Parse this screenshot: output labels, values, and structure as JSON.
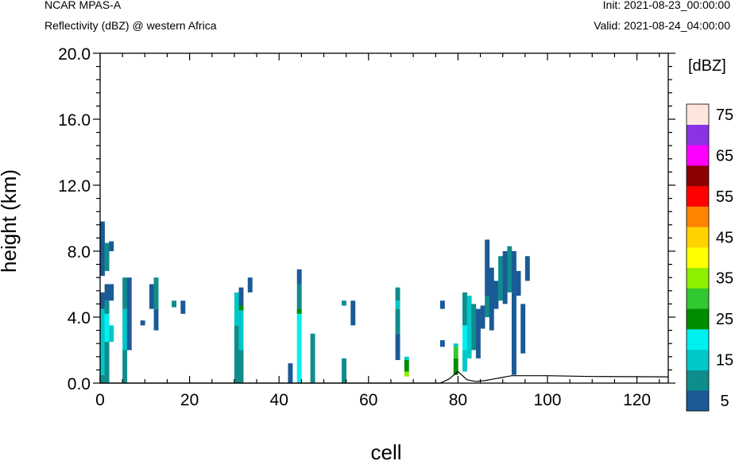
{
  "header": {
    "model": "NCAR MPAS-A",
    "field": "Reflectivity (dBZ) @ western Africa",
    "init": "Init: 2021-08-23_00:00:00",
    "valid": "Valid: 2021-08-24_04:00:00"
  },
  "chart_data": {
    "type": "heatmap",
    "xlabel": "cell",
    "ylabel": "height (km)",
    "xlim": [
      0,
      127
    ],
    "ylim": [
      0,
      20
    ],
    "x_ticks": [
      "0",
      "20",
      "40",
      "60",
      "80",
      "100",
      "120"
    ],
    "y_ticks": [
      "0.0",
      "4.0",
      "8.0",
      "12.0",
      "16.0",
      "20.0"
    ],
    "grid": false,
    "colorbar": {
      "unit": "[dBZ]",
      "position": "right",
      "levels": [
        5,
        10,
        15,
        20,
        25,
        30,
        35,
        40,
        45,
        50,
        55,
        60,
        65,
        70,
        75
      ],
      "labels": [
        "5",
        "15",
        "25",
        "35",
        "45",
        "55",
        "65",
        "75"
      ],
      "colors": [
        "#1a5a96",
        "#0f8c8c",
        "#00c8c8",
        "#00f0f0",
        "#008c00",
        "#32c832",
        "#8cf000",
        "#ffff00",
        "#ffd200",
        "#ff8200",
        "#ff0000",
        "#8c0000",
        "#ff00ff",
        "#8c32e6",
        "#ffe6dc"
      ]
    },
    "terrain_km": [
      [
        0,
        0
      ],
      [
        76,
        0
      ],
      [
        78,
        0.25
      ],
      [
        80,
        0.7
      ],
      [
        82,
        0.2
      ],
      [
        84,
        0.1
      ],
      [
        86,
        0.15
      ],
      [
        88,
        0.25
      ],
      [
        90,
        0.35
      ],
      [
        92,
        0.45
      ],
      [
        100,
        0.45
      ],
      [
        110,
        0.4
      ],
      [
        127,
        0.38
      ]
    ],
    "cells": [
      [
        0,
        0,
        0.5,
        10
      ],
      [
        0,
        0.5,
        4.5,
        15
      ],
      [
        0,
        4.5,
        5.5,
        5
      ],
      [
        0,
        6.5,
        9.8,
        5
      ],
      [
        1,
        0,
        2.5,
        10
      ],
      [
        1,
        2.5,
        4.2,
        20
      ],
      [
        1,
        4.2,
        5,
        10
      ],
      [
        1,
        5,
        6,
        5
      ],
      [
        1,
        6.8,
        8.5,
        10
      ],
      [
        2,
        2.5,
        3.5,
        15
      ],
      [
        2,
        5,
        6,
        5
      ],
      [
        2,
        8,
        8.6,
        5
      ],
      [
        5,
        0,
        2,
        10
      ],
      [
        5,
        2,
        4.5,
        15
      ],
      [
        5,
        4.5,
        6.4,
        10
      ],
      [
        6,
        2,
        4,
        5
      ],
      [
        6,
        4,
        6.4,
        5
      ],
      [
        9,
        3.5,
        3.8,
        5
      ],
      [
        11,
        4.5,
        6,
        5
      ],
      [
        12,
        3.2,
        4.5,
        5
      ],
      [
        12,
        4.5,
        6.4,
        10
      ],
      [
        16,
        4.6,
        5,
        10
      ],
      [
        18,
        4.2,
        5,
        5
      ],
      [
        30,
        0,
        3.5,
        10
      ],
      [
        30,
        3.5,
        5.5,
        15
      ],
      [
        31,
        0,
        2,
        10
      ],
      [
        31,
        2,
        4.4,
        15
      ],
      [
        31,
        4.4,
        4.7,
        25
      ],
      [
        31,
        4.7,
        5.8,
        5
      ],
      [
        33,
        5.5,
        6.4,
        5
      ],
      [
        42,
        0,
        1.2,
        5
      ],
      [
        44,
        0,
        4.5,
        20
      ],
      [
        44,
        4.5,
        6,
        10
      ],
      [
        44,
        6,
        6.9,
        5
      ],
      [
        44,
        4.2,
        4.5,
        25
      ],
      [
        47,
        0,
        3,
        10
      ],
      [
        54,
        0,
        1.5,
        10
      ],
      [
        54,
        4.7,
        5,
        10
      ],
      [
        56,
        3.5,
        5,
        5
      ],
      [
        66,
        1.4,
        3,
        5
      ],
      [
        66,
        3,
        4.5,
        10
      ],
      [
        66,
        4.5,
        5,
        15
      ],
      [
        66,
        5,
        5.8,
        10
      ],
      [
        68,
        0.4,
        0.7,
        35
      ],
      [
        68,
        0.7,
        1.4,
        25
      ],
      [
        68,
        1.4,
        1.6,
        15
      ],
      [
        76,
        2.2,
        2.6,
        5
      ],
      [
        76,
        4.5,
        5,
        5
      ],
      [
        79,
        0.5,
        1.5,
        25
      ],
      [
        79,
        1.5,
        2.2,
        30
      ],
      [
        79,
        2.2,
        2.4,
        15
      ],
      [
        81,
        0.7,
        2,
        15
      ],
      [
        81,
        2,
        3.5,
        20
      ],
      [
        81,
        3.5,
        5.5,
        10
      ],
      [
        82,
        1.5,
        5.3,
        15
      ],
      [
        83,
        2,
        4.8,
        10
      ],
      [
        84,
        1.5,
        4.5,
        5
      ],
      [
        85,
        3.3,
        4.7,
        5
      ],
      [
        86,
        5.3,
        8.7,
        5
      ],
      [
        86,
        4,
        5.3,
        10
      ],
      [
        87,
        3.2,
        7,
        5
      ],
      [
        88,
        4.5,
        6.2,
        5
      ],
      [
        89,
        5,
        7.7,
        10
      ],
      [
        90,
        4.8,
        8,
        5
      ],
      [
        91,
        5.5,
        8.3,
        10
      ],
      [
        92,
        0.5,
        5.5,
        5
      ],
      [
        92,
        5.5,
        8,
        5
      ],
      [
        93,
        5.3,
        6.8,
        5
      ],
      [
        94,
        1.8,
        4.8,
        5
      ],
      [
        95,
        6.2,
        7.7,
        5
      ]
    ]
  }
}
